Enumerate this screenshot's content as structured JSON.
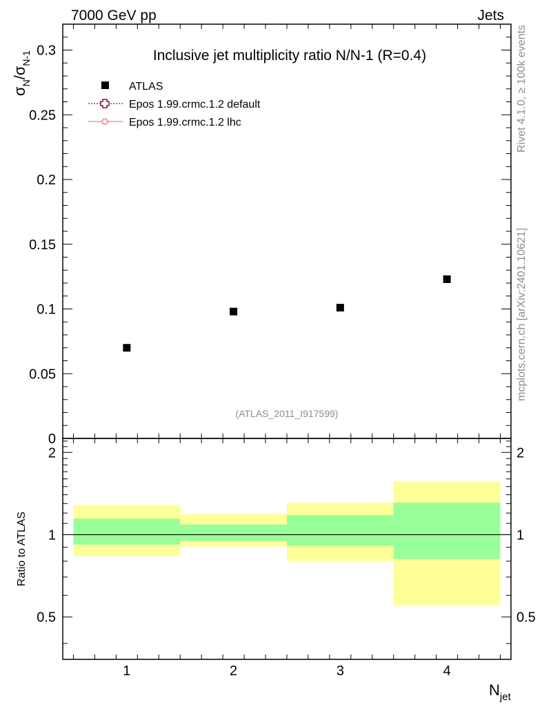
{
  "header": {
    "left": "7000 GeV pp",
    "right": "Jets"
  },
  "side": {
    "top": "Rivet 4.1.0, ≥ 100k events",
    "bottom": "mcplots.cern.ch [arXiv:2401.10621]"
  },
  "chart_data": [
    {
      "type": "scatter",
      "title": "Inclusive jet multiplicity ratio N/N-1 (R=0.4)",
      "ylabel_main": "σ",
      "ylabel_sub1": "N",
      "ylabel_slash": "/σ",
      "ylabel_sub2": "N-1",
      "xlim": [
        0.4,
        4.6
      ],
      "ylim": [
        0,
        0.32
      ],
      "yticks": [
        0,
        0.05,
        0.1,
        0.15,
        0.2,
        0.25,
        0.3
      ],
      "ytick_labels": [
        "0",
        "0.05",
        "0.1",
        "0.15",
        "0.2",
        "0.25",
        "0.3"
      ],
      "series": [
        {
          "name": "ATLAS",
          "x": [
            1,
            2,
            3,
            4
          ],
          "y": [
            0.07,
            0.098,
            0.101,
            0.123
          ]
        }
      ],
      "legend": [
        {
          "label": "ATLAS",
          "style": "square",
          "color": "#000000"
        },
        {
          "label": "Epos 1.99.crmc.1.2 default",
          "style": "cross-dotted",
          "color": "#7b1240"
        },
        {
          "label": "Epos 1.99.crmc.1.2 lhc",
          "style": "cross-solid",
          "color": "#f08080"
        }
      ],
      "annotation": "(ATLAS_2011_I917599)"
    },
    {
      "type": "area",
      "ylabel": "Ratio to ATLAS",
      "xlabel_main": "N",
      "xlabel_sub": "jet",
      "xlim": [
        0.4,
        4.6
      ],
      "ylim": [
        0.35,
        2.25
      ],
      "yticks": [
        0.5,
        1,
        2
      ],
      "ytick_labels": [
        "0.5",
        "1",
        "2"
      ],
      "xticks": [
        1,
        2,
        3,
        4
      ],
      "xtick_labels": [
        "1",
        "2",
        "3",
        "4"
      ],
      "reference": 1,
      "bands": [
        {
          "x0": 0.5,
          "x1": 1.5,
          "yellow": [
            0.835,
            1.285
          ],
          "green": [
            0.92,
            1.145
          ]
        },
        {
          "x0": 1.5,
          "x1": 2.5,
          "yellow": [
            0.905,
            1.19
          ],
          "green": [
            0.95,
            1.09
          ]
        },
        {
          "x0": 2.5,
          "x1": 3.5,
          "yellow": [
            0.8,
            1.31
          ],
          "green": [
            0.91,
            1.18
          ]
        },
        {
          "x0": 3.5,
          "x1": 4.5,
          "yellow": [
            0.55,
            1.57
          ],
          "green": [
            0.815,
            1.31
          ]
        }
      ],
      "colors": {
        "yellow": "#ffff99",
        "green": "#99ff99",
        "line": "#000000"
      }
    }
  ]
}
